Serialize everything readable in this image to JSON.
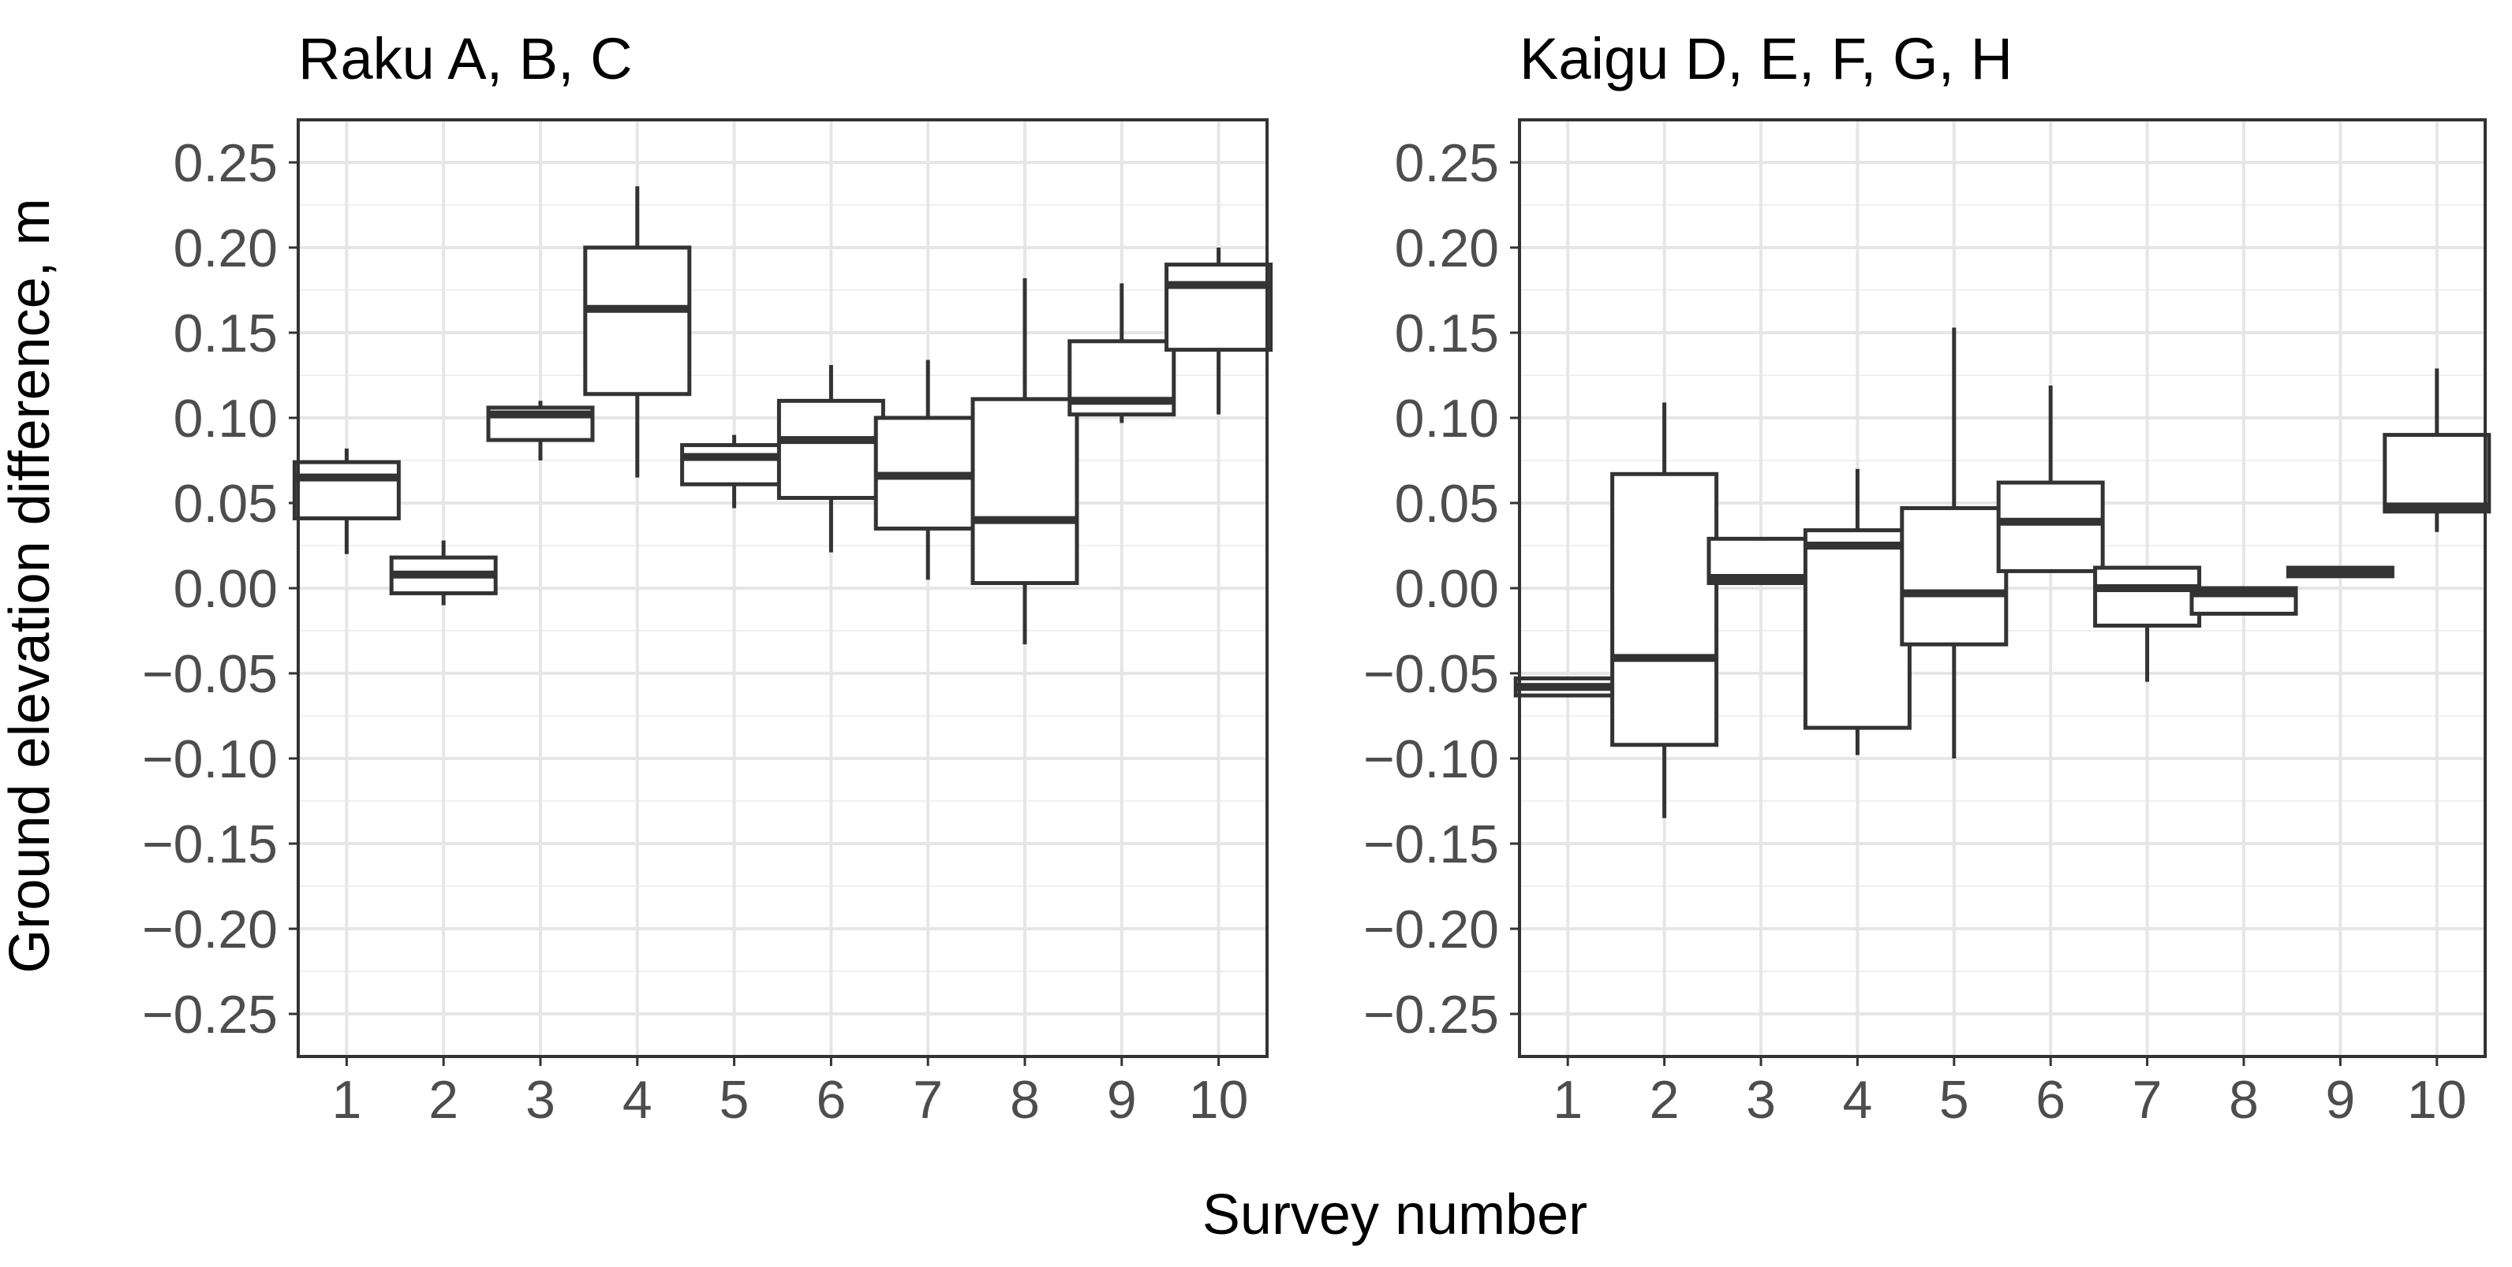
{
  "chart_data": {
    "type": "boxplot",
    "xlabel": "Survey number",
    "ylabel": "Ground elevation difference, m",
    "ylim": [
      -0.275,
      0.275
    ],
    "y_ticks": [
      0.25,
      0.2,
      0.15,
      0.1,
      0.05,
      0.0,
      -0.05,
      -0.1,
      -0.15,
      -0.2,
      -0.25
    ],
    "y_tick_labels": [
      "0.25",
      "0.20",
      "0.15",
      "0.10",
      "0.05",
      "0.00",
      "−0.05",
      "−0.10",
      "−0.15",
      "−0.20",
      "−0.25"
    ],
    "categories": [
      "1",
      "2",
      "3",
      "4",
      "5",
      "6",
      "7",
      "8",
      "9",
      "10"
    ],
    "grid": true,
    "panels": [
      {
        "title": "Raku A, B, C",
        "boxes": [
          {
            "category": "1",
            "whisker_low": 0.02,
            "q1": 0.041,
            "median": 0.065,
            "q3": 0.074,
            "whisker_high": 0.082
          },
          {
            "category": "2",
            "whisker_low": -0.01,
            "q1": -0.003,
            "median": 0.008,
            "q3": 0.018,
            "whisker_high": 0.028
          },
          {
            "category": "3",
            "whisker_low": 0.075,
            "q1": 0.087,
            "median": 0.102,
            "q3": 0.106,
            "whisker_high": 0.11
          },
          {
            "category": "4",
            "whisker_low": 0.065,
            "q1": 0.114,
            "median": 0.164,
            "q3": 0.2,
            "whisker_high": 0.236
          },
          {
            "category": "5",
            "whisker_low": 0.047,
            "q1": 0.061,
            "median": 0.077,
            "q3": 0.084,
            "whisker_high": 0.09
          },
          {
            "category": "6",
            "whisker_low": 0.021,
            "q1": 0.053,
            "median": 0.087,
            "q3": 0.11,
            "whisker_high": 0.131
          },
          {
            "category": "7",
            "whisker_low": 0.005,
            "q1": 0.035,
            "median": 0.066,
            "q3": 0.1,
            "whisker_high": 0.134
          },
          {
            "category": "8",
            "whisker_low": -0.033,
            "q1": 0.003,
            "median": 0.04,
            "q3": 0.111,
            "whisker_high": 0.182
          },
          {
            "category": "9",
            "whisker_low": 0.097,
            "q1": 0.102,
            "median": 0.11,
            "q3": 0.145,
            "whisker_high": 0.179
          },
          {
            "category": "10",
            "whisker_low": 0.102,
            "q1": 0.14,
            "median": 0.178,
            "q3": 0.19,
            "whisker_high": 0.2
          }
        ]
      },
      {
        "title": "Kaigu D, E, F, G, H",
        "boxes": [
          {
            "category": "1",
            "whisker_low": -0.063,
            "q1": -0.063,
            "median": -0.058,
            "q3": -0.053,
            "whisker_high": -0.053
          },
          {
            "category": "2",
            "whisker_low": -0.135,
            "q1": -0.092,
            "median": -0.041,
            "q3": 0.067,
            "whisker_high": 0.109
          },
          {
            "category": "3",
            "whisker_low": 0.003,
            "q1": 0.003,
            "median": 0.006,
            "q3": 0.029,
            "whisker_high": 0.029
          },
          {
            "category": "4",
            "whisker_low": -0.098,
            "q1": -0.082,
            "median": 0.025,
            "q3": 0.034,
            "whisker_high": 0.07
          },
          {
            "category": "5",
            "whisker_low": -0.1,
            "q1": -0.033,
            "median": -0.003,
            "q3": 0.047,
            "whisker_high": 0.153
          },
          {
            "category": "6",
            "whisker_low": 0.01,
            "q1": 0.01,
            "median": 0.039,
            "q3": 0.062,
            "whisker_high": 0.119
          },
          {
            "category": "7",
            "whisker_low": -0.055,
            "q1": -0.022,
            "median": 0.0,
            "q3": 0.012,
            "whisker_high": 0.012
          },
          {
            "category": "8",
            "whisker_low": -0.015,
            "q1": -0.015,
            "median": -0.003,
            "q3": 0.0,
            "whisker_high": 0.0
          },
          {
            "category": "9",
            "whisker_low": 0.007,
            "q1": 0.007,
            "median": 0.01,
            "q3": 0.012,
            "whisker_high": 0.012
          },
          {
            "category": "10",
            "whisker_low": 0.033,
            "q1": 0.045,
            "median": 0.048,
            "q3": 0.09,
            "whisker_high": 0.129
          }
        ]
      }
    ]
  }
}
